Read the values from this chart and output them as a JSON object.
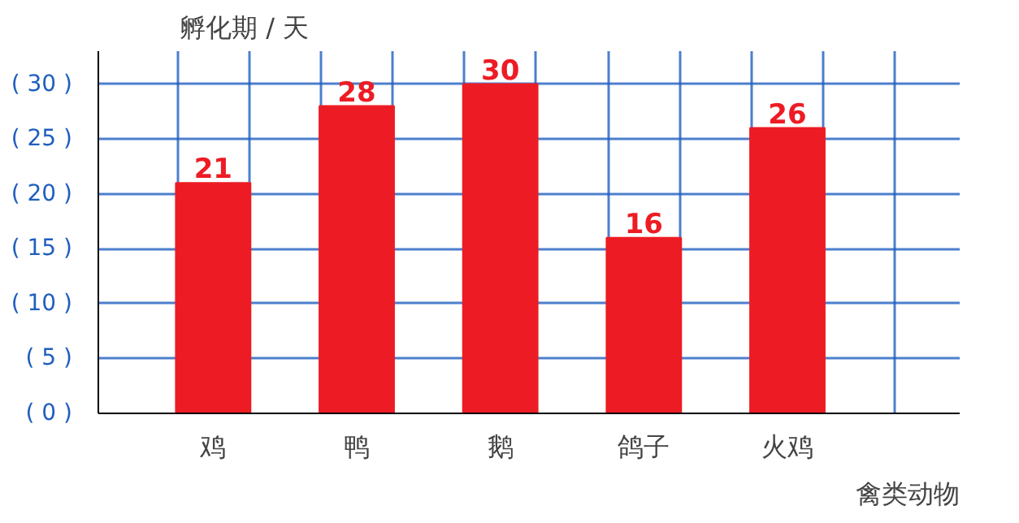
{
  "chart_data": {
    "type": "bar",
    "xlabel": "禽类动物",
    "ylabel": "孵化期 / 天",
    "categories": [
      "鸡",
      "鸭",
      "鹅",
      "鸽子",
      "火鸡"
    ],
    "values": [
      21,
      28,
      30,
      16,
      26
    ],
    "color": "#ed1c24",
    "data_labels": true,
    "ylim": [
      0,
      33
    ],
    "yticks": [
      {
        "value": 0,
        "label": "( 0 )"
      },
      {
        "value": 5,
        "label": "( 5 )"
      },
      {
        "value": 10,
        "label": "( 10 )"
      },
      {
        "value": 15,
        "label": "( 15 )"
      },
      {
        "value": 20,
        "label": "( 20 )"
      },
      {
        "value": 25,
        "label": "( 25 )"
      },
      {
        "value": 30,
        "label": "( 30 )"
      }
    ],
    "grid": true
  }
}
